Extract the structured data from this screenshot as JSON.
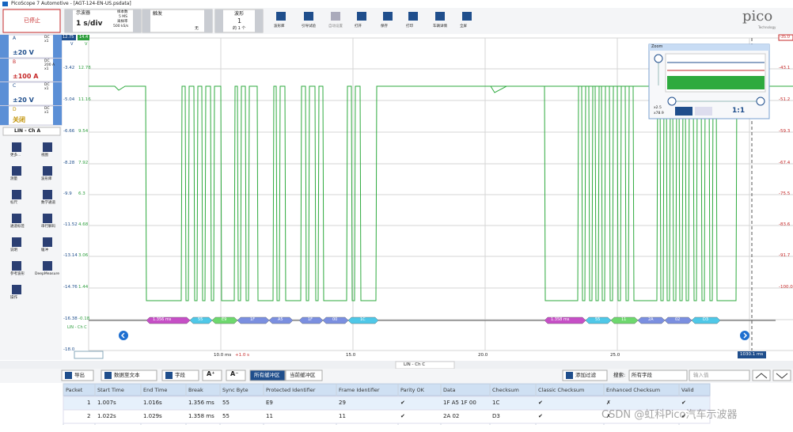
{
  "window": {
    "title": "PicoScope 7 Automotive - [AGT-124-EN-US.psdata]"
  },
  "toolbar": {
    "stop": "已停止",
    "mode": "示波器",
    "timebase": "1 s/div",
    "samples_label": "样本数",
    "samples": "5 MS",
    "rate_label": "采样率",
    "rate": "500 kS/s",
    "trigger_label": "触发",
    "trigger": "无",
    "waveform_label": "波形",
    "waveform": "1",
    "waveform_of": "的 1 个",
    "buttons": [
      "波形库",
      "引导试验",
      "自动设置",
      "打开",
      "保存",
      "打印",
      "车辆详情",
      "全屏"
    ],
    "logo": "pico",
    "logo_sub": "Technology"
  },
  "channels": [
    {
      "name": "A",
      "info": [
        "DC",
        "x1"
      ],
      "range": "±20 V"
    },
    {
      "name": "B",
      "info": [
        "DC",
        "200 A",
        "x1"
      ],
      "range": "±100 A"
    },
    {
      "name": "C",
      "info": [
        "DC",
        "x1"
      ],
      "range": "±20 V"
    },
    {
      "name": "D",
      "info": [
        "DC",
        "x1"
      ],
      "range": "关闭"
    }
  ],
  "decoder": "LIN - Ch A",
  "tools": [
    "更多...",
    "视图",
    "测量",
    "波形库",
    "标尺",
    "数学通道",
    "通道标签",
    "串行解码",
    "说明",
    "缓冲",
    "参考波形",
    "DeepMeasure",
    "操作"
  ],
  "scope": {
    "axis_a": {
      "top": "12.75",
      "unit": "V",
      "ticks": [
        "-3.42",
        "-5.04",
        "-6.66",
        "-8.28",
        "-9.9",
        "-11.52",
        "-13.14",
        "-14.76",
        "-16.38",
        "-18.0"
      ]
    },
    "axis_c": {
      "top": "14.4",
      "unit": "V",
      "ticks": [
        "12.78",
        "11.16",
        "9.54",
        "7.92",
        "6.3",
        "4.68",
        "3.06",
        "1.44",
        "-0.18"
      ]
    },
    "axis_b": {
      "top": "-35.0",
      "ticks": [
        "-43.1",
        "-51.2",
        "-59.3",
        "-67.4",
        "-75.5",
        "-83.6",
        "-91.7",
        "-100.0"
      ]
    },
    "x_labels": [
      "10.0 ms",
      "15.0",
      "20.0",
      "25.0"
    ],
    "x_offset": "+1.0 s",
    "ruler": "1030.1 ms",
    "channel_label": "LIN - Ch C",
    "frames": [
      {
        "break": "1.356 ms",
        "bytes": [
          "55",
          "E9",
          "1F",
          "A5",
          "1F",
          "00",
          "1C"
        ]
      },
      {
        "break": "1.358 ms",
        "bytes": [
          "55",
          "11",
          "2A",
          "02",
          "D3"
        ]
      }
    ]
  },
  "zoom": {
    "title": "Zoom",
    "scale_x": "x2.5",
    "scale_y": "x78.9",
    "reset": "1:1"
  },
  "table": {
    "tab": "LIN - Ch C",
    "export": "导出",
    "to_text": "数据至文本",
    "fields": "字段",
    "font_up": "A⁺",
    "font_down": "A⁻",
    "all_buffers": "所有缓冲区",
    "current_buffer": "当前缓冲区",
    "add_filter": "添加过滤",
    "search_label": "搜索:",
    "search_field": "所有字段",
    "search_placeholder": "输入值",
    "columns": [
      "Packet",
      "Start Time",
      "End Time",
      "Break",
      "Sync Byte",
      "Protected Identifier",
      "Frame Identifier",
      "Parity OK",
      "Data",
      "Checksum",
      "Classic Checksum",
      "Enhanced Checksum",
      "Valid"
    ],
    "rows": [
      [
        "1",
        "1.007s",
        "1.016s",
        "1.356 ms",
        "55",
        "E9",
        "29",
        "✔",
        "1F A5 1F 00",
        "1C",
        "✔",
        "✗",
        "✔"
      ],
      [
        "2",
        "1.022s",
        "1.029s",
        "1.358 ms",
        "55",
        "11",
        "11",
        "✔",
        "2A 02",
        "D3",
        "✔",
        "✗",
        "✔"
      ]
    ]
  },
  "watermark": "CSDN @虹科Pico汽车示波器"
}
